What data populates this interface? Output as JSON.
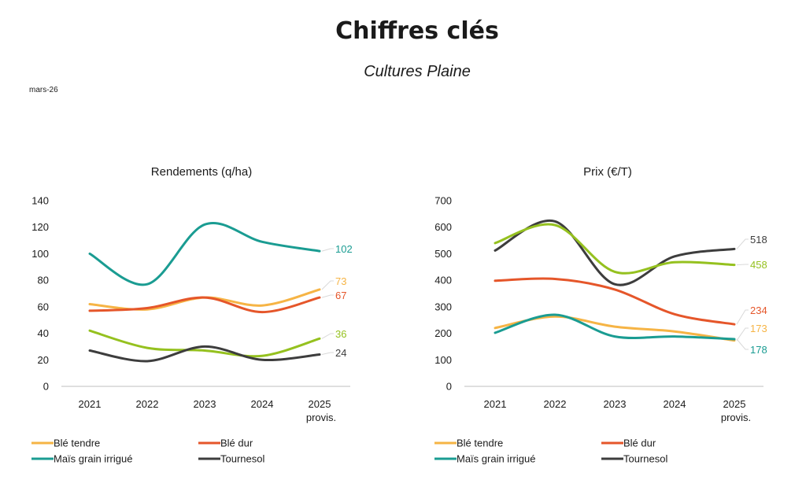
{
  "header": {
    "title": "Chiffres clés",
    "subtitle": "Cultures Plaine",
    "date": "mars-26"
  },
  "colors": {
    "ble_tendre": "#F6B445",
    "ble_dur": "#E5562A",
    "mais": "#1A9C92",
    "tournesol": "#3D3D3D",
    "green": "#95C11F",
    "axis": "#BFBFBF"
  },
  "chart_data": [
    {
      "type": "line",
      "title": "Rendements (q/ha)",
      "categories": [
        [
          "2021"
        ],
        [
          "2022"
        ],
        [
          "2023"
        ],
        [
          "2024"
        ],
        [
          "2025",
          "provis."
        ]
      ],
      "ylim": [
        0,
        140
      ],
      "yticks": [
        0,
        20,
        40,
        60,
        80,
        100,
        120,
        140
      ],
      "grid": false,
      "legend_position": "bottom",
      "series": [
        {
          "name": "Maïs grain irrigué",
          "color": "#1A9C92",
          "values": [
            100,
            77,
            122,
            109,
            102
          ],
          "end_label": "102"
        },
        {
          "name": "Blé tendre",
          "color": "#F6B445",
          "values": [
            62,
            58,
            67,
            61,
            73
          ],
          "end_label": "73"
        },
        {
          "name": "Blé dur",
          "color": "#E5562A",
          "values": [
            57,
            59,
            67,
            56,
            67
          ],
          "end_label": "67"
        },
        {
          "name": "",
          "color": "#95C11F",
          "values": [
            42,
            29,
            27,
            23,
            36
          ],
          "end_label": "36"
        },
        {
          "name": "Tournesol",
          "color": "#3D3D3D",
          "values": [
            27,
            19,
            30,
            20,
            24
          ],
          "end_label": "24"
        }
      ]
    },
    {
      "type": "line",
      "title": "Prix (€/T)",
      "categories": [
        [
          "2021"
        ],
        [
          "2022"
        ],
        [
          "2023"
        ],
        [
          "2024"
        ],
        [
          "2025",
          "provis."
        ]
      ],
      "ylim": [
        0,
        700
      ],
      "yticks": [
        0,
        100,
        200,
        300,
        400,
        500,
        600,
        700
      ],
      "grid": false,
      "legend_position": "bottom",
      "series": [
        {
          "name": "Tournesol",
          "color": "#3D3D3D",
          "values": [
            512,
            622,
            385,
            490,
            518
          ],
          "end_label": "518"
        },
        {
          "name": "",
          "color": "#95C11F",
          "values": [
            540,
            608,
            432,
            468,
            458
          ],
          "end_label": "458"
        },
        {
          "name": "Blé dur",
          "color": "#E5562A",
          "values": [
            398,
            405,
            365,
            272,
            234
          ],
          "end_label": "234"
        },
        {
          "name": "Blé tendre",
          "color": "#F6B445",
          "values": [
            220,
            263,
            225,
            207,
            173
          ],
          "end_label": "173"
        },
        {
          "name": "Maïs grain irrigué",
          "color": "#1A9C92",
          "values": [
            202,
            270,
            188,
            188,
            178
          ],
          "end_label": "178"
        }
      ]
    }
  ],
  "legend": [
    {
      "label": "Blé tendre",
      "color": "#F6B445"
    },
    {
      "label": "Blé dur",
      "color": "#E5562A"
    },
    {
      "label": "Maïs grain irrigué",
      "color": "#1A9C92"
    },
    {
      "label": "Tournesol",
      "color": "#3D3D3D"
    }
  ]
}
